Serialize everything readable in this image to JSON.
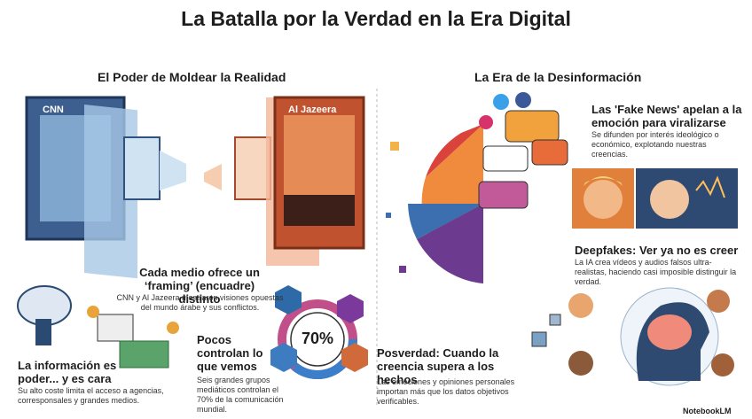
{
  "title": "La Batalla por la Verdad en la Era Digital",
  "left": {
    "heading": "El Poder de Moldear la Realidad",
    "screen_labels": [
      "CNN",
      "Al Jazeera"
    ],
    "framing": {
      "title": "Cada medio ofrece un ‘framing’ (encuadre) distinto",
      "body": "CNN y Al Jazeera mostraron visiones opuestas del mundo árabe y sus conflictos."
    },
    "cost": {
      "title": "La información es poder... y es cara",
      "body": "Su alto coste limita el acceso a agencias, corresponsales y grandes medios."
    },
    "control": {
      "title": "Pocos controlan lo que vemos",
      "body": "Seis grandes grupos mediáticos controlan el 70% de la comunicación mundial.",
      "badge": "70%"
    }
  },
  "right": {
    "heading": "La Era de la Desinformación",
    "fake_news": {
      "title": "Las 'Fake News' apelan a la emoción para viralizarse",
      "body": "Se difunden por interés ideológico o económico, explotando nuestras creencias."
    },
    "deepfakes": {
      "title": "Deepfakes: Ver ya no es creer",
      "body": "La IA crea vídeos y audios falsos ultra-realistas, haciendo casi imposible distinguir la verdad."
    },
    "post_truth": {
      "title": "Posverdad: Cuando la creencia supera a los hechos",
      "body": "Las emociones y opiniones personales importan más que los datos objetivos verificables."
    }
  },
  "footer": "NotebookLM"
}
